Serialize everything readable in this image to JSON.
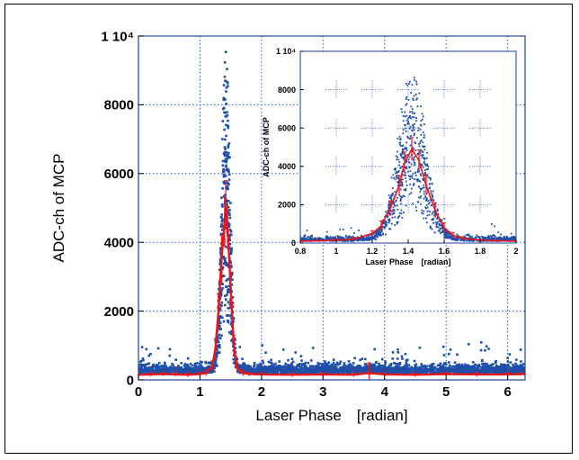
{
  "chart_data": [
    {
      "id": "main",
      "type": "scatter",
      "title": "",
      "xlabel": "Laser Phase　[radian]",
      "ylabel": "ADC-ch of MCP",
      "xlim": [
        0,
        6.2832
      ],
      "ylim": [
        0,
        10000
      ],
      "xticks": [
        0,
        1,
        2,
        3,
        4,
        5,
        6
      ],
      "xtick_labels": [
        "0",
        "1",
        "2",
        "3",
        "4",
        "5",
        "6"
      ],
      "yticks": [
        0,
        2000,
        4000,
        6000,
        8000,
        10000
      ],
      "ytick_labels": [
        "0",
        "2000",
        "4000",
        "6000",
        "8000",
        "1 10⁴"
      ],
      "grid": true,
      "series": [
        {
          "kind": "points",
          "color": "#1f4fa8",
          "description_values": "noisy scatter with sharp peak near x=1.42",
          "peak_center": 1.42,
          "peak_height": 5200,
          "peak_width": 0.07,
          "baseline": 200
        },
        {
          "kind": "line_with_errorbars",
          "color": "#e8151b",
          "x": [
            0.0,
            0.2,
            0.4,
            0.6,
            0.8,
            1.0,
            1.1,
            1.2,
            1.25,
            1.3,
            1.35,
            1.4,
            1.42,
            1.45,
            1.5,
            1.55,
            1.6,
            1.7,
            1.8,
            2.0,
            2.5,
            3.0,
            3.5,
            3.75,
            4.0,
            4.5,
            5.0,
            5.5,
            6.0,
            6.28
          ],
          "y": [
            150,
            160,
            170,
            160,
            150,
            170,
            200,
            400,
            900,
            2000,
            3500,
            4600,
            5100,
            4400,
            2600,
            1000,
            350,
            200,
            170,
            160,
            150,
            160,
            150,
            200,
            160,
            150,
            170,
            160,
            160,
            170
          ],
          "err": [
            60,
            60,
            60,
            60,
            60,
            60,
            80,
            150,
            300,
            500,
            700,
            700,
            700,
            600,
            500,
            300,
            150,
            80,
            60,
            60,
            60,
            60,
            60,
            300,
            60,
            60,
            60,
            60,
            60,
            60
          ]
        }
      ]
    },
    {
      "id": "inset",
      "type": "scatter",
      "title": "",
      "xlabel": "Laser Phase　[radian]",
      "ylabel": "ADC-ch of MCP",
      "xlim": [
        0.8,
        2.0
      ],
      "ylim": [
        0,
        10000
      ],
      "xticks": [
        0.8,
        1.0,
        1.2,
        1.4,
        1.6,
        1.8,
        2.0
      ],
      "xtick_labels": [
        "0.8",
        "1",
        "1.2",
        "1.4",
        "1.6",
        "1.8",
        "2"
      ],
      "yticks": [
        0,
        2000,
        4000,
        6000,
        8000,
        10000
      ],
      "ytick_labels": [
        "0",
        "2000",
        "4000",
        "6000",
        "8000",
        "1 10⁴"
      ],
      "grid": true,
      "series": [
        {
          "kind": "points",
          "color": "#1f4fa8",
          "peak_center": 1.42,
          "peak_height": 5000,
          "peak_width": 0.08,
          "baseline": 100
        },
        {
          "kind": "line_with_errorbars",
          "color": "#e8151b",
          "x": [
            0.8,
            0.9,
            1.0,
            1.1,
            1.2,
            1.25,
            1.3,
            1.35,
            1.38,
            1.42,
            1.46,
            1.5,
            1.55,
            1.6,
            1.65,
            1.7,
            1.8,
            1.9,
            2.0
          ],
          "y": [
            100,
            120,
            150,
            200,
            500,
            900,
            1800,
            3000,
            4200,
            4900,
            4300,
            3000,
            1700,
            800,
            400,
            250,
            150,
            120,
            100
          ],
          "err": [
            40,
            40,
            50,
            80,
            150,
            250,
            400,
            500,
            550,
            600,
            550,
            500,
            400,
            250,
            150,
            80,
            50,
            40,
            40
          ]
        }
      ]
    }
  ]
}
